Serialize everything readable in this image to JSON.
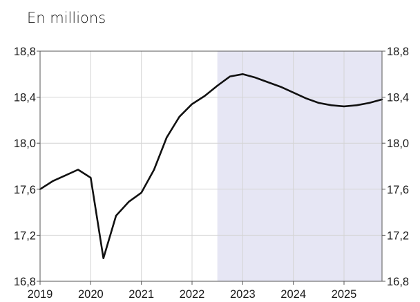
{
  "unit_label": "En millions",
  "chart_data": {
    "type": "line",
    "title": "",
    "xlabel": "",
    "ylabel": "En millions",
    "xlim": [
      2019.0,
      2025.75
    ],
    "ylim": [
      16.8,
      18.8
    ],
    "x_ticks": [
      "2019",
      "2020",
      "2021",
      "2022",
      "2023",
      "2024",
      "2025"
    ],
    "y_ticks_left": [
      "18,8",
      "18,4",
      "18,0",
      "17,6",
      "17,2",
      "16,8"
    ],
    "y_ticks_right": [
      "18,8",
      "18,4",
      "18,0",
      "17,6",
      "17,2",
      "16,8"
    ],
    "grid": true,
    "shaded_region": {
      "x_start": 2022.5,
      "x_end": 2025.75,
      "color": "#e6e6f4"
    },
    "series": [
      {
        "color": "#111111",
        "x": [
          2019.0,
          2019.25,
          2019.5,
          2019.75,
          2020.0,
          2020.25,
          2020.5,
          2020.75,
          2021.0,
          2021.25,
          2021.5,
          2021.75,
          2022.0,
          2022.25,
          2022.5,
          2022.75,
          2023.0,
          2023.25,
          2023.5,
          2023.75,
          2024.0,
          2024.25,
          2024.5,
          2024.75,
          2025.0,
          2025.25,
          2025.5,
          2025.75
        ],
        "y": [
          17.6,
          17.67,
          17.72,
          17.77,
          17.7,
          17.0,
          17.37,
          17.49,
          17.57,
          17.77,
          18.05,
          18.23,
          18.34,
          18.41,
          18.5,
          18.58,
          18.6,
          18.57,
          18.53,
          18.49,
          18.44,
          18.39,
          18.35,
          18.33,
          18.32,
          18.33,
          18.35,
          18.38
        ]
      }
    ]
  }
}
